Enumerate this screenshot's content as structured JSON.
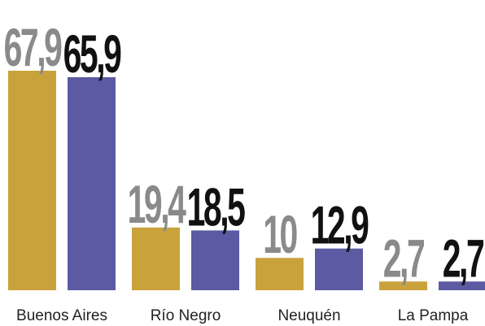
{
  "chart_data": {
    "type": "bar",
    "categories": [
      "Buenos Aires",
      "Río Negro",
      "Neuquén",
      "La Pampa"
    ],
    "series": [
      {
        "color": "#c9a23c",
        "label_color": "#8a8a8a",
        "values": [
          67.9,
          19.4,
          10,
          2.7
        ],
        "value_labels": [
          "67,9",
          "19,4",
          "10",
          "2,7"
        ]
      },
      {
        "color": "#5b5aa3",
        "label_color": "#111111",
        "values": [
          65.9,
          18.5,
          12.9,
          2.7
        ],
        "value_labels": [
          "65,9",
          "18,5",
          "12,9",
          "2,7"
        ]
      }
    ]
  }
}
